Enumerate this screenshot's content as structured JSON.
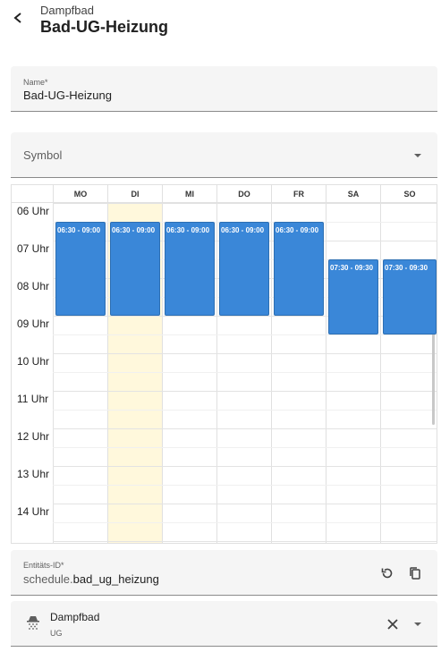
{
  "header": {
    "subtitle": "Dampfbad",
    "title": "Bad-UG-Heizung"
  },
  "name_field": {
    "label": "Name*",
    "value": "Bad-UG-Heizung"
  },
  "symbol_field": {
    "label": "Symbol"
  },
  "schedule": {
    "days": [
      "MO",
      "DI",
      "MI",
      "DO",
      "FR",
      "SA",
      "SO"
    ],
    "today": "DI",
    "hours": [
      "06 Uhr",
      "07 Uhr",
      "08 Uhr",
      "09 Uhr",
      "10 Uhr",
      "11 Uhr",
      "12 Uhr",
      "13 Uhr",
      "14 Uhr"
    ],
    "events": [
      {
        "day": "MO",
        "start": "06:30",
        "end": "09:00",
        "label": "06:30 - 09:00"
      },
      {
        "day": "DI",
        "start": "06:30",
        "end": "09:00",
        "label": "06:30 - 09:00"
      },
      {
        "day": "MI",
        "start": "06:30",
        "end": "09:00",
        "label": "06:30 - 09:00"
      },
      {
        "day": "DO",
        "start": "06:30",
        "end": "09:00",
        "label": "06:30 - 09:00"
      },
      {
        "day": "FR",
        "start": "06:30",
        "end": "09:00",
        "label": "06:30 - 09:00"
      },
      {
        "day": "SA",
        "start": "07:30",
        "end": "09:30",
        "label": "07:30 - 09:30"
      },
      {
        "day": "SO",
        "start": "07:30",
        "end": "09:30",
        "label": "07:30 - 09:30"
      }
    ],
    "event_color": "#3a87d8",
    "today_color": "#fff8dc"
  },
  "entity_field": {
    "label": "Entitäts-ID*",
    "value_prefix": "schedule.",
    "value_id": "bad_ug_heizung"
  },
  "area_field": {
    "name": "Dampfbad",
    "floor": "UG",
    "icon": "steam-shower-icon"
  },
  "icons": {
    "back": "arrow-left-icon",
    "dropdown": "chevron-down-icon",
    "regenerate": "refresh-icon",
    "copy": "copy-icon",
    "clear": "close-icon"
  }
}
